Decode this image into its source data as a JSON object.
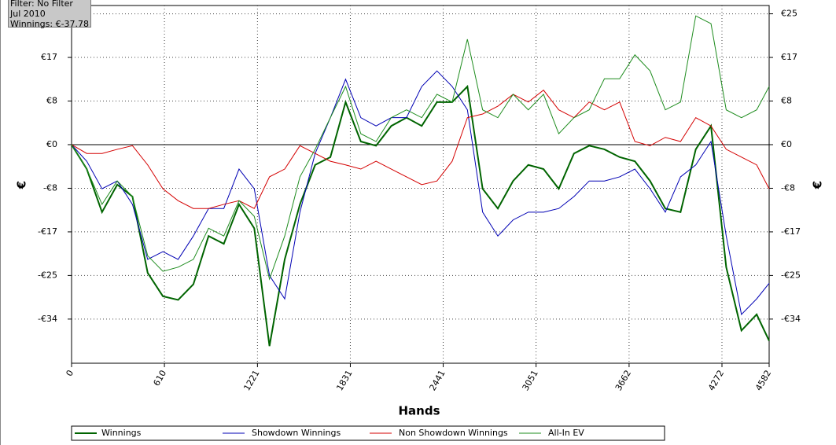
{
  "info": {
    "filter": "Filter: No Filter",
    "period": "Jul 2010",
    "winnings": "Winnings: €-37.78"
  },
  "chart_data": {
    "type": "line",
    "xlabel": "Hands",
    "ylabel": "€",
    "y2label": "€",
    "x": [
      0,
      100,
      200,
      300,
      400,
      500,
      600,
      700,
      800,
      900,
      1000,
      1100,
      1200,
      1300,
      1400,
      1500,
      1600,
      1700,
      1800,
      1900,
      2000,
      2100,
      2200,
      2300,
      2400,
      2500,
      2600,
      2700,
      2800,
      2900,
      3000,
      3100,
      3200,
      3300,
      3400,
      3500,
      3600,
      3700,
      3800,
      3900,
      4000,
      4100,
      4200,
      4300,
      4400,
      4500,
      4582
    ],
    "xlim": [
      0,
      4582
    ],
    "xticks": [
      0,
      610,
      1221,
      1831,
      2441,
      3051,
      3662,
      4272,
      4582
    ],
    "ylim": [
      -42.1,
      26.8
    ],
    "yticks": [
      {
        "value": 25.2,
        "label": "€25"
      },
      {
        "value": 16.8,
        "label": "€17"
      },
      {
        "value": 8.4,
        "label": "€8"
      },
      {
        "value": 0,
        "label": "€0"
      },
      {
        "value": -8.4,
        "label": "-€8"
      },
      {
        "value": -16.8,
        "label": "-€17"
      },
      {
        "value": -25.2,
        "label": "-€25"
      },
      {
        "value": -33.6,
        "label": "-€34"
      }
    ],
    "y2lim": [
      -42.1,
      26.8
    ],
    "y2ticks": [
      {
        "value": 25.2,
        "label": "€25"
      },
      {
        "value": 16.8,
        "label": "€17"
      },
      {
        "value": 8.4,
        "label": "€8"
      },
      {
        "value": 0,
        "label": "€0"
      },
      {
        "value": -8.4,
        "label": "-€8"
      },
      {
        "value": -16.8,
        "label": "-€17"
      },
      {
        "value": -25.2,
        "label": "-€25"
      },
      {
        "value": -33.6,
        "label": "-€34"
      }
    ],
    "grid": true,
    "legend": "bottom",
    "series": [
      {
        "name": "Winnings",
        "color": "#006400",
        "line_width": 2,
        "values": [
          0,
          -4.7,
          -13.0,
          -7.7,
          -10.0,
          -24.7,
          -29.2,
          -29.9,
          -26.9,
          -17.6,
          -19.1,
          -11.5,
          -16.1,
          -38.8,
          -22.1,
          -11.5,
          -3.9,
          -2.4,
          8.2,
          0.6,
          -0.2,
          3.6,
          5.2,
          3.6,
          8.2,
          8.2,
          11.2,
          -8.5,
          -12.3,
          -7.0,
          -3.9,
          -4.7,
          -8.5,
          -1.7,
          -0.2,
          -0.9,
          -2.4,
          -3.2,
          -7.0,
          -12.3,
          -13.0,
          -0.9,
          3.6,
          -23.6,
          -35.8,
          -32.7,
          -37.78
        ]
      },
      {
        "name": "Showdown Winnings",
        "color": "#0000b4",
        "line_width": 1,
        "values": [
          0,
          -3.2,
          -8.5,
          -7.0,
          -11.5,
          -22.1,
          -20.6,
          -22.1,
          -17.6,
          -12.3,
          -12.3,
          -4.7,
          -8.5,
          -25.2,
          -29.7,
          -13.0,
          -1.7,
          5.2,
          12.6,
          5.2,
          3.6,
          5.2,
          5.2,
          11.2,
          14.2,
          11.2,
          6.7,
          -13.0,
          -17.6,
          -14.5,
          -13.0,
          -13.0,
          -12.3,
          -10.0,
          -7.0,
          -7.0,
          -6.2,
          -4.7,
          -8.5,
          -13.0,
          -6.2,
          -3.9,
          0.6,
          -17.6,
          -32.7,
          -29.7,
          -26.7
        ]
      },
      {
        "name": "Non Showdown Winnings",
        "color": "#d40000",
        "line_width": 1,
        "values": [
          0,
          -1.7,
          -1.7,
          -0.9,
          -0.2,
          -3.9,
          -8.5,
          -10.8,
          -12.3,
          -12.3,
          -11.5,
          -10.8,
          -12.3,
          -6.2,
          -4.7,
          -0.2,
          -1.7,
          -3.2,
          -3.9,
          -4.7,
          -3.2,
          -4.7,
          -6.2,
          -7.7,
          -7.0,
          -3.2,
          5.2,
          5.9,
          7.4,
          9.7,
          8.2,
          10.5,
          6.7,
          5.2,
          8.2,
          6.7,
          8.2,
          0.6,
          -0.2,
          1.4,
          0.6,
          5.2,
          3.6,
          -0.9,
          -2.4,
          -3.9,
          -8.5
        ]
      },
      {
        "name": "All-In EV",
        "color": "#1e8c1e",
        "line_width": 1,
        "values": [
          0,
          -4.7,
          -11.5,
          -7.0,
          -10.0,
          -21.4,
          -24.4,
          -23.6,
          -22.1,
          -16.1,
          -17.6,
          -10.8,
          -13.8,
          -25.9,
          -17.6,
          -6.2,
          -0.9,
          5.2,
          11.2,
          2.1,
          0.6,
          5.2,
          6.7,
          5.2,
          9.7,
          8.2,
          20.3,
          6.7,
          5.2,
          9.7,
          6.7,
          9.7,
          2.1,
          5.2,
          6.7,
          12.7,
          12.7,
          17.3,
          14.2,
          6.7,
          8.2,
          24.8,
          23.3,
          6.7,
          5.2,
          6.7,
          11.2
        ]
      }
    ]
  }
}
